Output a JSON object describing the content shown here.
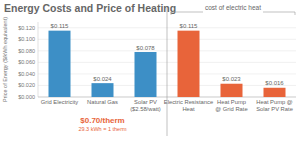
{
  "chart_data": {
    "type": "bar",
    "title": "Energy Costs and Price of Heating",
    "y_label": "Price of Energy ($/kWh equivalent)",
    "categories": [
      "Grid Electricity",
      "Natural Gas",
      "Solar PV\n($2.58/watt)",
      "Electric Resistance\nHeat",
      "Heat Pump\n@ Grid Rate",
      "Heat Pump @\nSolar PV Rate"
    ],
    "values": [
      0.115,
      0.024,
      0.078,
      0.115,
      0.023,
      0.016
    ],
    "value_labels": [
      "$0.115",
      "$0.024",
      "$0.078",
      "$0.115",
      "$0.023",
      "$0.016"
    ],
    "colors": [
      "#3d8fc6",
      "#3d8fc6",
      "#3d8fc6",
      "#e8643a",
      "#e8643a",
      "#e8643a"
    ],
    "data_labels": true,
    "grid": true,
    "ylim": [
      0,
      0.13
    ],
    "yticks": [
      {
        "value": 0,
        "label": "$0.000"
      },
      {
        "value": 0.02,
        "label": "$0.020"
      },
      {
        "value": 0.04,
        "label": "$0.040"
      },
      {
        "value": 0.06,
        "label": "$0.060"
      },
      {
        "value": 0.08,
        "label": "$0.080"
      },
      {
        "value": 0.1,
        "label": "$0.100"
      },
      {
        "value": 0.12,
        "label": "$0.120"
      }
    ],
    "annotations": [
      "$0.70/therm",
      "29.3 kWh = 1 therm",
      "cost of electric heat"
    ]
  }
}
